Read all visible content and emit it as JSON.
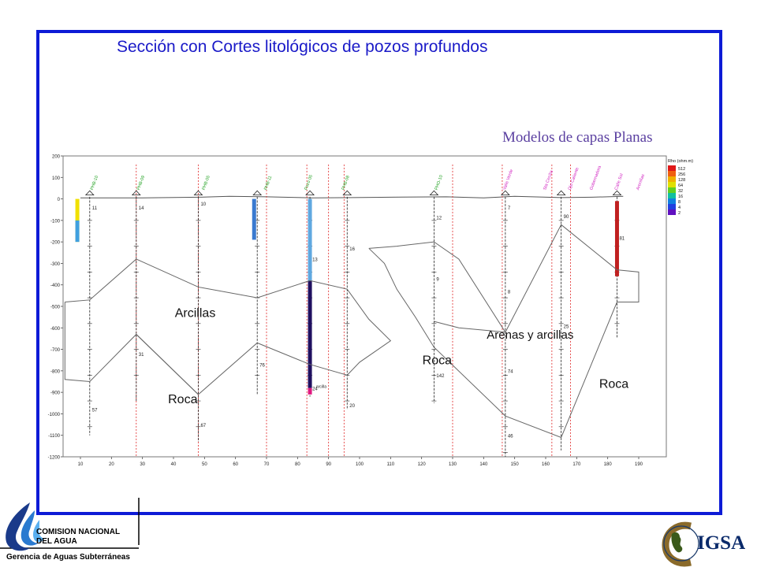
{
  "header": {
    "title": "Sección con Cortes litológicos de pozos profundos",
    "subtitle": "Modelos de capas Planas"
  },
  "section": {
    "y_ticks": [
      "200",
      "100",
      "0",
      "-100",
      "-200",
      "-300",
      "-400",
      "-500",
      "-600",
      "-700",
      "-800",
      "-900",
      "-1000",
      "-1100",
      "-1200"
    ],
    "x_ticks": [
      "10",
      "20",
      "30",
      "40",
      "50",
      "60",
      "70",
      "80",
      "90",
      "100",
      "110",
      "120",
      "130",
      "140",
      "150",
      "160",
      "170",
      "180",
      "190"
    ],
    "units": [
      "Arcillas",
      "Roca",
      "Roca",
      "Arenas y arcillas",
      "Roca"
    ],
    "well_labels": [
      "PHB-10",
      "PHB-09",
      "PHB-05",
      "PHB-11",
      "Pozo 05",
      "PHB-08",
      "PHO-10",
      "Valle Verde",
      "Sta Cecilia",
      "Ojo Caliente",
      "Gobernadora",
      "Calle Sol",
      "Arenillas"
    ],
    "depth_labels": [
      "11",
      "14",
      "10",
      "13",
      "16",
      "12",
      "7",
      "9",
      "8",
      "25",
      "24",
      "31",
      "57",
      "67",
      "76",
      "20",
      "142",
      "74",
      "90",
      "81",
      "46"
    ],
    "bottom_note": "arcilla",
    "legend": {
      "title": "Rho (ohm.m)",
      "values": [
        "512",
        "256",
        "128",
        "64",
        "32",
        "16",
        "8",
        "4",
        "2"
      ],
      "colors": [
        "#e01818",
        "#f06010",
        "#f0b000",
        "#e0e000",
        "#60d020",
        "#10c0a0",
        "#1080e0",
        "#2040e0",
        "#6010c0"
      ]
    }
  },
  "footer": {
    "org_line1": "COMISION NACIONAL",
    "org_line2": "DEL AGUA",
    "department": "Gerencia de Aguas Subterráneas",
    "logo_right": "IGSA"
  }
}
